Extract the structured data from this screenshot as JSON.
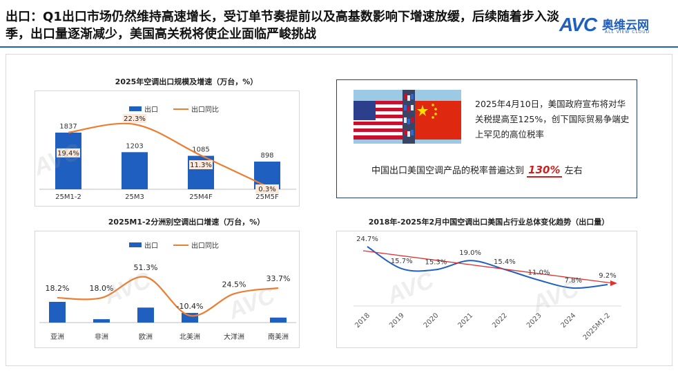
{
  "header": {
    "title": "出口：Q1出口市场仍然维持高速增长，受订单节奏提前以及高基数影响下增速放缓，后续随着步入淡季，出口量逐渐减少，美国高关税将使企业面临严峻挑战",
    "logo_text": "AVC",
    "logo_cn": "奥维云网",
    "logo_en": "ALL VIEW CLOUD"
  },
  "info": {
    "text": "2025年4月10日，美国政府宣布将对华关税提高至125%，创下国际贸易争端史上罕见的高位税率",
    "rate_prefix": "中国出口美国空调产品的税率普遍达到",
    "rate_value": "130%",
    "rate_suffix": "左右"
  },
  "colors": {
    "bar": "#1f5fbf",
    "line": "#ed7d31",
    "trend": "#e03030",
    "accent": "#1f5fbf"
  },
  "chart_data": [
    {
      "type": "bar",
      "title": "2025年空调出口规模及增速（万台，%）",
      "legend": [
        "出口",
        "出口同比"
      ],
      "categories": [
        "25M1-2",
        "25M3",
        "25M4F",
        "25M5F"
      ],
      "series": [
        {
          "name": "出口",
          "type": "bar",
          "values": [
            1837,
            1203,
            1085,
            898
          ],
          "labels": [
            "1837",
            "1203",
            "1085",
            "898"
          ]
        },
        {
          "name": "出口同比",
          "type": "line",
          "values": [
            19.4,
            22.3,
            11.3,
            0.3
          ],
          "labels": [
            "19.4%",
            "22.3%",
            "11.3%",
            "0.3%"
          ]
        }
      ]
    },
    {
      "type": "bar",
      "title": "2025M1-2分洲别空调出口增速（万台，%）",
      "legend": [
        "出口",
        "出口同比"
      ],
      "categories": [
        "亚洲",
        "非洲",
        "欧洲",
        "北美洲",
        "大洋洲",
        "南美洲"
      ],
      "series": [
        {
          "name": "出口",
          "type": "bar",
          "values": [
            580,
            95,
            420,
            270,
            0,
            140
          ]
        },
        {
          "name": "出口同比",
          "type": "line",
          "values": [
            18.2,
            18.0,
            51.3,
            -10.4,
            24.5,
            33.7
          ],
          "labels": [
            "18.2%",
            "18.0%",
            "51.3%",
            "-10.4%",
            "24.5%",
            "33.7%"
          ]
        }
      ]
    },
    {
      "type": "line",
      "title": "2018年-2025年2月中国空调出口美国占行业总体变化趋势（出口量）",
      "categories": [
        "2018",
        "2019",
        "2020",
        "2021",
        "2022",
        "2023",
        "2024",
        "2025M1-2"
      ],
      "series": [
        {
          "name": "占比",
          "values": [
            24.7,
            15.7,
            15.3,
            19.0,
            15.4,
            11.0,
            7.8,
            9.2
          ],
          "labels": [
            "24.7%",
            "15.7%",
            "15.3%",
            "19.0%",
            "15.4%",
            "11.0%",
            "7.8%",
            "9.2%"
          ]
        }
      ],
      "trendline": true
    }
  ]
}
